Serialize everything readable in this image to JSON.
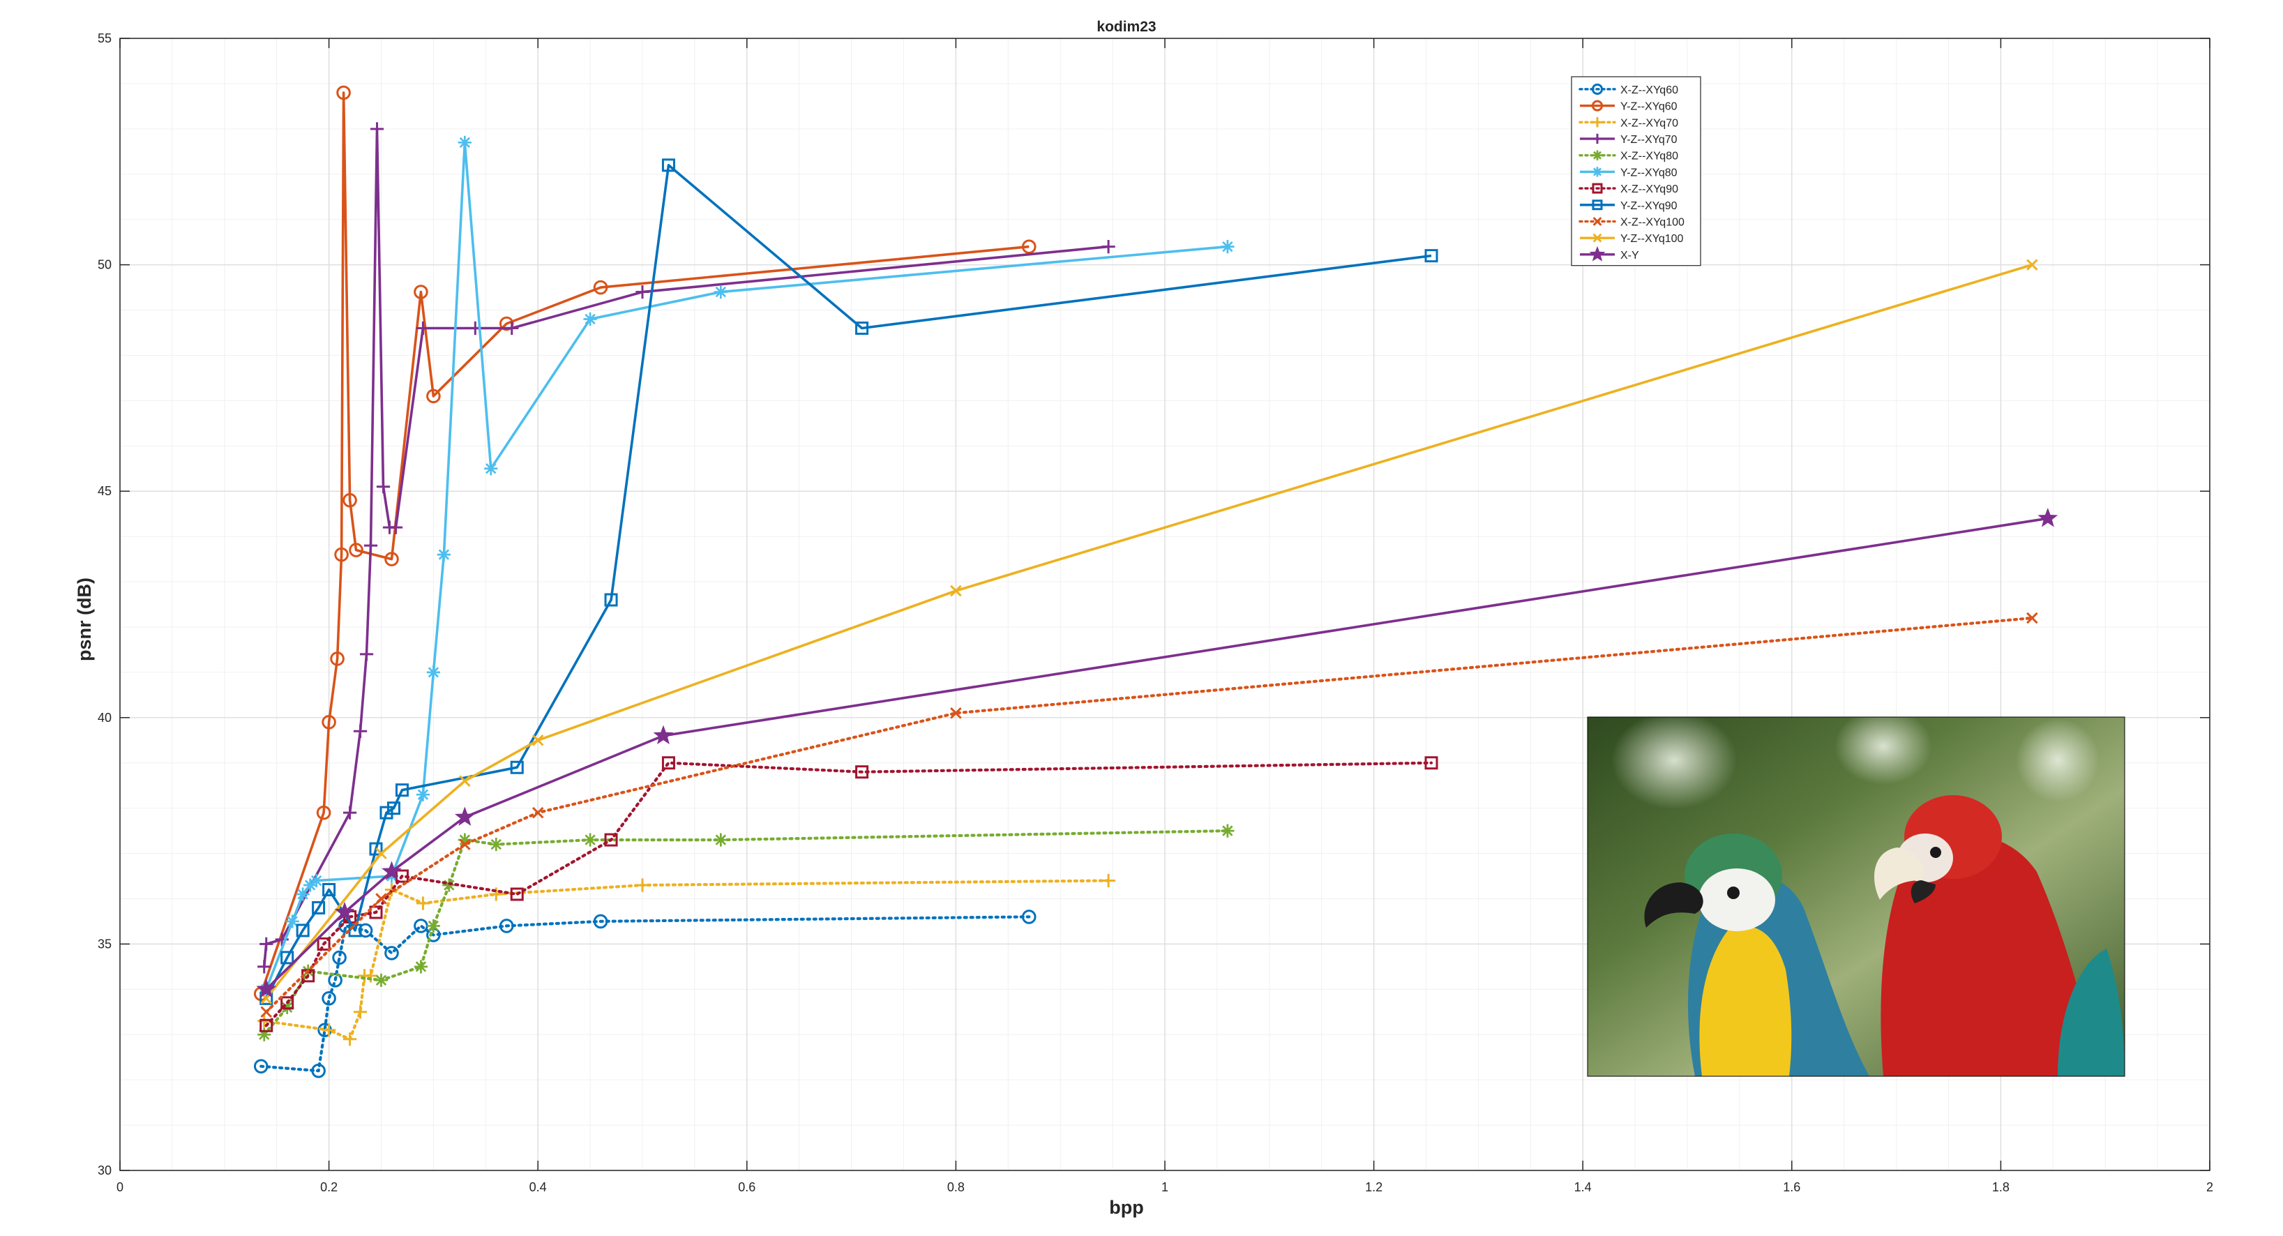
{
  "chart_data": {
    "type": "line",
    "title": "kodim23",
    "xlabel": "bpp",
    "ylabel": "psnr (dB)",
    "xlim": [
      0,
      2
    ],
    "ylim": [
      30,
      55
    ],
    "xticks": [
      0,
      0.2,
      0.4,
      0.6,
      0.8,
      1,
      1.2,
      1.4,
      1.6,
      1.8,
      2
    ],
    "xtick_labels": [
      "0",
      "0.2",
      "0.4",
      "0.6",
      "0.8",
      "1",
      "1.2",
      "1.4",
      "1.6",
      "1.8",
      "2"
    ],
    "yticks": [
      30,
      35,
      40,
      45,
      50,
      55
    ],
    "ytick_labels": [
      "30",
      "35",
      "40",
      "45",
      "50",
      "55"
    ],
    "grid": true,
    "minor_grid": true,
    "legend_position": "top-right",
    "inset_image": "parrots photograph (two macaws: blue-and-yellow and red-and-green)",
    "series": [
      {
        "name": "X-Z--XYq60",
        "color": "#0072BD",
        "style": "dotted",
        "marker": "circle",
        "x": [
          0.135,
          0.19,
          0.196,
          0.2,
          0.206,
          0.21,
          0.216,
          0.235,
          0.26,
          0.288,
          0.3,
          0.37,
          0.46,
          0.87
        ],
        "y": [
          32.3,
          32.2,
          33.1,
          33.8,
          34.2,
          34.7,
          35.4,
          35.3,
          34.8,
          35.4,
          35.2,
          35.4,
          35.5,
          35.6
        ]
      },
      {
        "name": "Y-Z--XYq60",
        "color": "#D95319",
        "style": "solid",
        "marker": "circle",
        "x": [
          0.135,
          0.195,
          0.2,
          0.208,
          0.212,
          0.214,
          0.22,
          0.226,
          0.26,
          0.288,
          0.3,
          0.37,
          0.46,
          0.87
        ],
        "y": [
          33.9,
          37.9,
          39.9,
          41.3,
          43.6,
          53.8,
          44.8,
          43.7,
          43.5,
          49.4,
          47.1,
          48.7,
          49.5,
          50.4
        ]
      },
      {
        "name": "X-Z--XYq70",
        "color": "#EDB120",
        "style": "dotted",
        "marker": "plus",
        "x": [
          0.138,
          0.2,
          0.22,
          0.23,
          0.234,
          0.24,
          0.26,
          0.29,
          0.36,
          0.5,
          0.946
        ],
        "y": [
          33.3,
          33.1,
          32.9,
          33.5,
          34.3,
          34.3,
          36.2,
          35.9,
          36.1,
          36.3,
          36.4
        ]
      },
      {
        "name": "Y-Z--XYq70",
        "color": "#7E2F8E",
        "style": "solid",
        "marker": "plus",
        "x": [
          0.138,
          0.14,
          0.155,
          0.22,
          0.23,
          0.236,
          0.24,
          0.246,
          0.252,
          0.258,
          0.264,
          0.29,
          0.34,
          0.375,
          0.5,
          0.946
        ],
        "y": [
          34.5,
          35.0,
          35.1,
          37.9,
          39.7,
          41.4,
          43.8,
          53.0,
          45.1,
          44.2,
          44.2,
          48.6,
          48.6,
          48.6,
          49.4,
          50.4
        ]
      },
      {
        "name": "X-Z--XYq80",
        "color": "#77AC30",
        "style": "dotted",
        "marker": "asterisk",
        "x": [
          0.138,
          0.16,
          0.18,
          0.25,
          0.288,
          0.3,
          0.315,
          0.33,
          0.36,
          0.45,
          0.575,
          1.06
        ],
        "y": [
          33.0,
          33.6,
          34.4,
          34.2,
          34.5,
          35.4,
          36.3,
          37.3,
          37.2,
          37.3,
          37.3,
          37.5
        ]
      },
      {
        "name": "Y-Z--XYq80",
        "color": "#4DBEEE",
        "style": "solid",
        "marker": "asterisk",
        "x": [
          0.14,
          0.165,
          0.175,
          0.182,
          0.188,
          0.26,
          0.29,
          0.3,
          0.31,
          0.33,
          0.355,
          0.45,
          0.575,
          1.06
        ],
        "y": [
          34.0,
          35.5,
          36.1,
          36.3,
          36.4,
          36.5,
          38.3,
          41.0,
          43.6,
          52.7,
          45.5,
          48.8,
          49.4,
          50.4
        ]
      },
      {
        "name": "X-Z--XYq90",
        "color": "#A2142F",
        "style": "dotted",
        "marker": "square",
        "x": [
          0.14,
          0.16,
          0.18,
          0.195,
          0.22,
          0.245,
          0.27,
          0.38,
          0.47,
          0.525,
          0.71,
          1.255
        ],
        "y": [
          33.2,
          33.7,
          34.3,
          35.0,
          35.6,
          35.7,
          36.5,
          36.1,
          37.3,
          39.0,
          38.8,
          39.0
        ]
      },
      {
        "name": "Y-Z--XYq90",
        "color": "#0072BD",
        "style": "solid",
        "marker": "square",
        "x": [
          0.14,
          0.16,
          0.175,
          0.19,
          0.2,
          0.225,
          0.245,
          0.255,
          0.262,
          0.27,
          0.38,
          0.47,
          0.525,
          0.71,
          1.255
        ],
        "y": [
          33.8,
          34.7,
          35.3,
          35.8,
          36.2,
          35.3,
          37.1,
          37.9,
          38.0,
          38.4,
          38.9,
          42.6,
          52.2,
          48.6,
          50.2
        ]
      },
      {
        "name": "X-Z--XYq100",
        "color": "#D95319",
        "style": "dotted",
        "marker": "x",
        "x": [
          0.14,
          0.25,
          0.33,
          0.4,
          0.8,
          1.83
        ],
        "y": [
          33.5,
          36.0,
          37.2,
          37.9,
          40.1,
          42.2
        ]
      },
      {
        "name": "Y-Z--XYq100",
        "color": "#EDB120",
        "style": "solid",
        "marker": "x",
        "x": [
          0.14,
          0.25,
          0.33,
          0.4,
          0.8,
          1.83
        ],
        "y": [
          33.8,
          37.0,
          38.6,
          39.5,
          42.8,
          50.0
        ]
      },
      {
        "name": "X-Y",
        "color": "#7E2F8E",
        "style": "solid",
        "marker": "star",
        "x": [
          0.14,
          0.215,
          0.26,
          0.33,
          0.52,
          1.845
        ],
        "y": [
          34.0,
          35.7,
          36.6,
          37.8,
          39.6,
          44.4
        ]
      }
    ]
  }
}
